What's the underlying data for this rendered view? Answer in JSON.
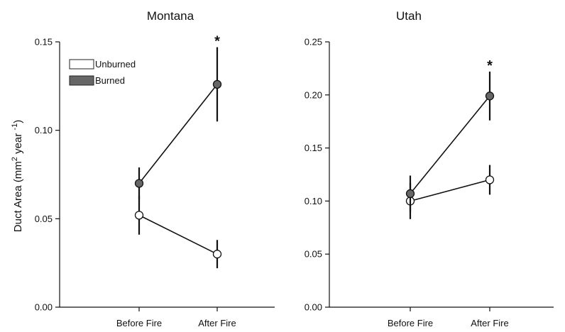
{
  "figure": {
    "ylabel": "Duct Area (mm² year ⁻¹)",
    "ylabel_parts": {
      "base": "Duct Area (mm",
      "sup1": "2",
      "mid": " year ",
      "sup2": "-1",
      "end": ")"
    }
  },
  "legend": {
    "unburned": "Unburned",
    "burned": "Burned"
  },
  "colors": {
    "unburned_fill": "#ffffff",
    "burned_fill": "#666666",
    "line": "#111111"
  },
  "chart_data": [
    {
      "type": "line",
      "title": "Montana",
      "categories": [
        "Before Fire",
        "After Fire"
      ],
      "ylim": [
        0,
        0.15
      ],
      "yticks": [
        "0.00",
        "0.05",
        "0.10",
        "0.15"
      ],
      "legend_placement": "top-left",
      "significance": {
        "category": "After Fire",
        "label": "*"
      },
      "series": [
        {
          "name": "Unburned",
          "values": [
            0.052,
            0.03
          ],
          "errors": [
            0.011,
            0.008
          ]
        },
        {
          "name": "Burned",
          "values": [
            0.07,
            0.126
          ],
          "errors": [
            0.009,
            0.021
          ]
        }
      ]
    },
    {
      "type": "line",
      "title": "Utah",
      "categories": [
        "Before Fire",
        "After Fire"
      ],
      "ylim": [
        0,
        0.25
      ],
      "yticks": [
        "0.00",
        "0.05",
        "0.10",
        "0.15",
        "0.20",
        "0.25"
      ],
      "significance": {
        "category": "After Fire",
        "label": "*"
      },
      "series": [
        {
          "name": "Unburned",
          "values": [
            0.1,
            0.12
          ],
          "errors": [
            0.017,
            0.014
          ]
        },
        {
          "name": "Burned",
          "values": [
            0.107,
            0.199
          ],
          "errors": [
            0.017,
            0.023
          ]
        }
      ]
    }
  ]
}
